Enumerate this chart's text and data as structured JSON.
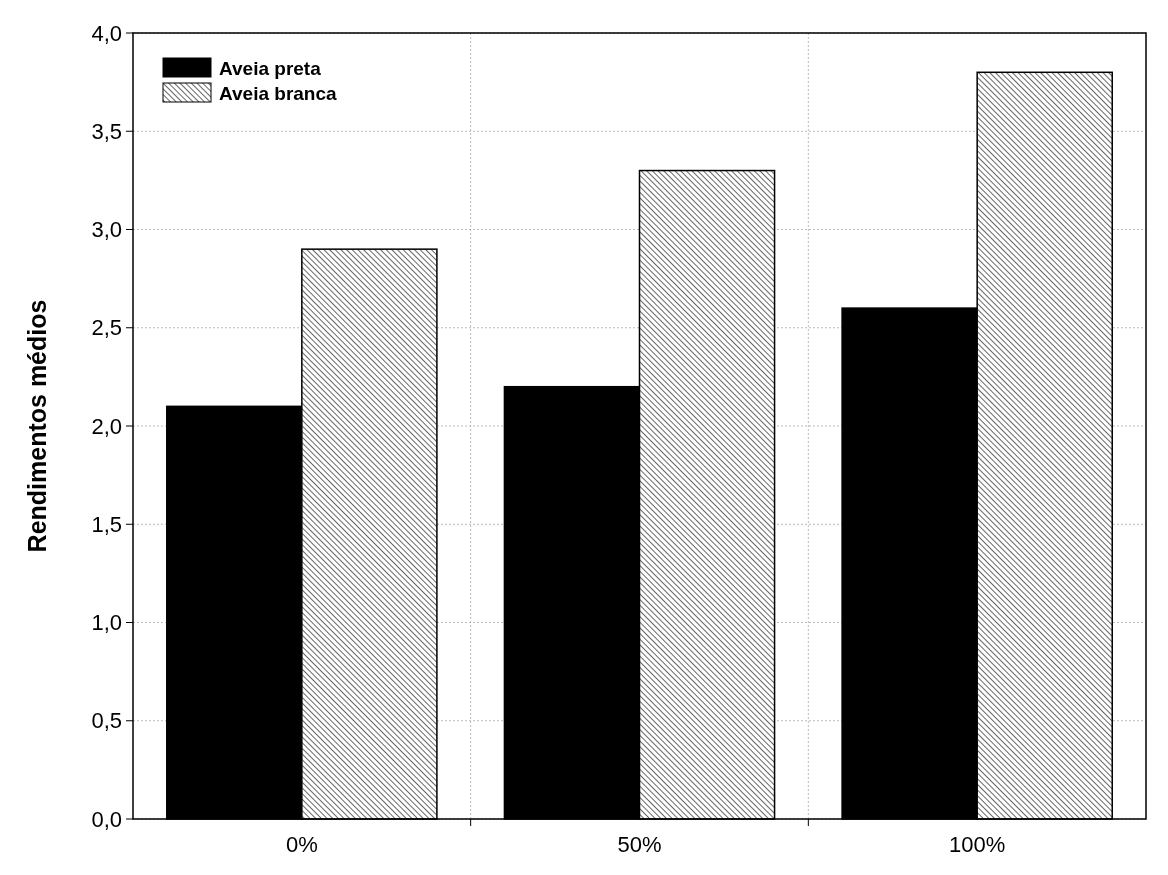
{
  "chart_data": {
    "type": "bar",
    "ylabel": "Rendimentos médios",
    "categories": [
      "0%",
      "50%",
      "100%"
    ],
    "series": [
      {
        "name": "Aveia preta",
        "color": "#000000",
        "values": [
          2.1,
          2.2,
          2.6
        ]
      },
      {
        "name": "Aveia branca",
        "color": "#000000",
        "values": [
          2.9,
          3.3,
          3.8
        ]
      }
    ],
    "ylim": [
      0,
      4
    ],
    "yticks": [
      {
        "value": 0,
        "label": "0,0"
      },
      {
        "value": 0.5,
        "label": "0,5"
      },
      {
        "value": 1,
        "label": "1,0"
      },
      {
        "value": 1.5,
        "label": "1,5"
      },
      {
        "value": 2,
        "label": "2,0"
      },
      {
        "value": 2.5,
        "label": "2,5"
      },
      {
        "value": 3,
        "label": "3,0"
      },
      {
        "value": 3.5,
        "label": "3,5"
      },
      {
        "value": 4,
        "label": "4,0"
      }
    ],
    "grid": true,
    "legend": "top left"
  }
}
